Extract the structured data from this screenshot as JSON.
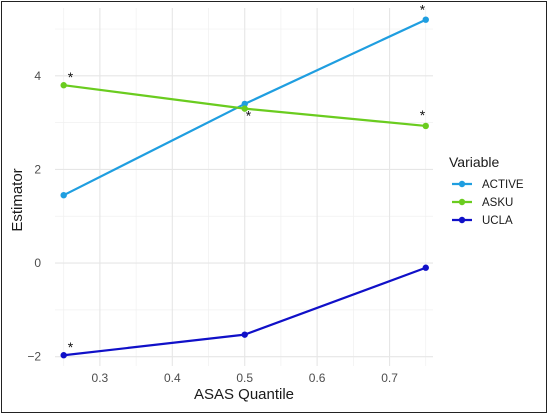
{
  "chart_data": {
    "type": "line",
    "title": "",
    "xlabel": "ASAS Quantile",
    "ylabel": "Estimator",
    "x": [
      0.25,
      0.5,
      0.75
    ],
    "xticks": [
      "0.3",
      "0.4",
      "0.5",
      "0.6",
      "0.7"
    ],
    "xtick_values": [
      0.3,
      0.4,
      0.5,
      0.6,
      0.7
    ],
    "yticks": [
      "−2",
      "0",
      "2",
      "4"
    ],
    "ytick_values": [
      -2,
      0,
      2,
      4
    ],
    "xlim": [
      0.238,
      0.76
    ],
    "ylim": [
      -2.2,
      5.45
    ],
    "grid": true,
    "legend": {
      "title": "Variable",
      "position": "right"
    },
    "series": [
      {
        "name": "ACTIVE",
        "color": "#1f9ee0",
        "values": [
          1.45,
          3.4,
          5.2
        ]
      },
      {
        "name": "ASKU",
        "color": "#6acc1f",
        "values": [
          3.8,
          3.3,
          2.93
        ]
      },
      {
        "name": "UCLA",
        "color": "#1010c8",
        "values": [
          -1.97,
          -1.53,
          -0.1
        ]
      }
    ],
    "significance_marker": "*",
    "annotations": [
      {
        "series": "ASKU",
        "x": 0.25
      },
      {
        "series": "ASKU",
        "x": 0.5
      },
      {
        "series": "ACTIVE",
        "x": 0.75
      },
      {
        "series": "ASKU",
        "x": 0.75
      },
      {
        "series": "UCLA",
        "x": 0.25
      }
    ]
  }
}
